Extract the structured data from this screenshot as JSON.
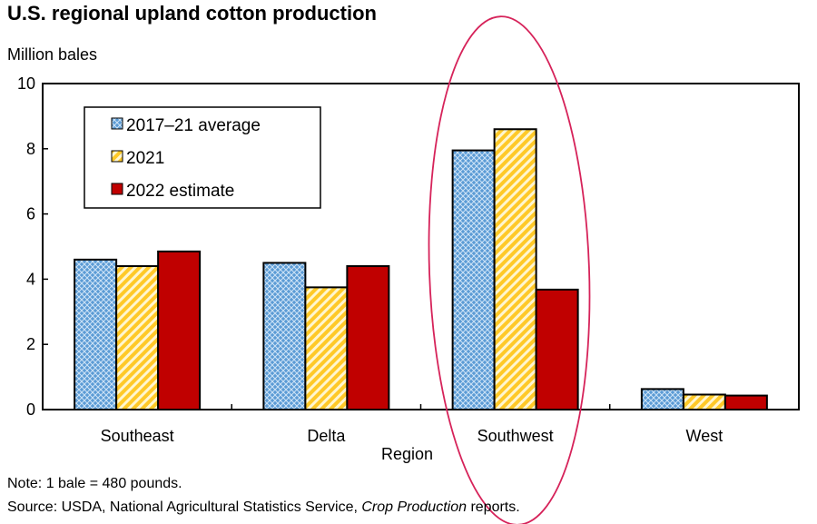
{
  "chart_data": {
    "type": "bar",
    "title": "U.S. regional upland cotton production",
    "ylabel": "Million bales",
    "xlabel": "Region",
    "categories": [
      "Southeast",
      "Delta",
      "Southwest",
      "West"
    ],
    "series": [
      {
        "name": "2017–21 average",
        "values": [
          4.6,
          4.5,
          7.95,
          0.63
        ],
        "color": "#5b9bd5",
        "pattern": "crosshatch"
      },
      {
        "name": "2021",
        "values": [
          4.4,
          3.75,
          8.6,
          0.46
        ],
        "color": "#ffd966",
        "pattern": "diagonal-stripes"
      },
      {
        "name": "2022 estimate",
        "values": [
          4.85,
          4.4,
          3.68,
          0.43
        ],
        "color": "#c00000",
        "pattern": "solid"
      }
    ],
    "ylim": [
      0,
      10
    ],
    "yticks": [
      0,
      2,
      4,
      6,
      8,
      10
    ],
    "grid": false,
    "legend": "top-left",
    "annotation": {
      "type": "ellipse",
      "highlights": "Southwest",
      "color": "#d6235a"
    },
    "notes": {
      "note": "Note: 1 bale = 480 pounds.",
      "source_prefix": "Source: USDA, National Agricultural Statistics Service, ",
      "source_italic": "Crop Production",
      "source_suffix": " reports."
    }
  }
}
